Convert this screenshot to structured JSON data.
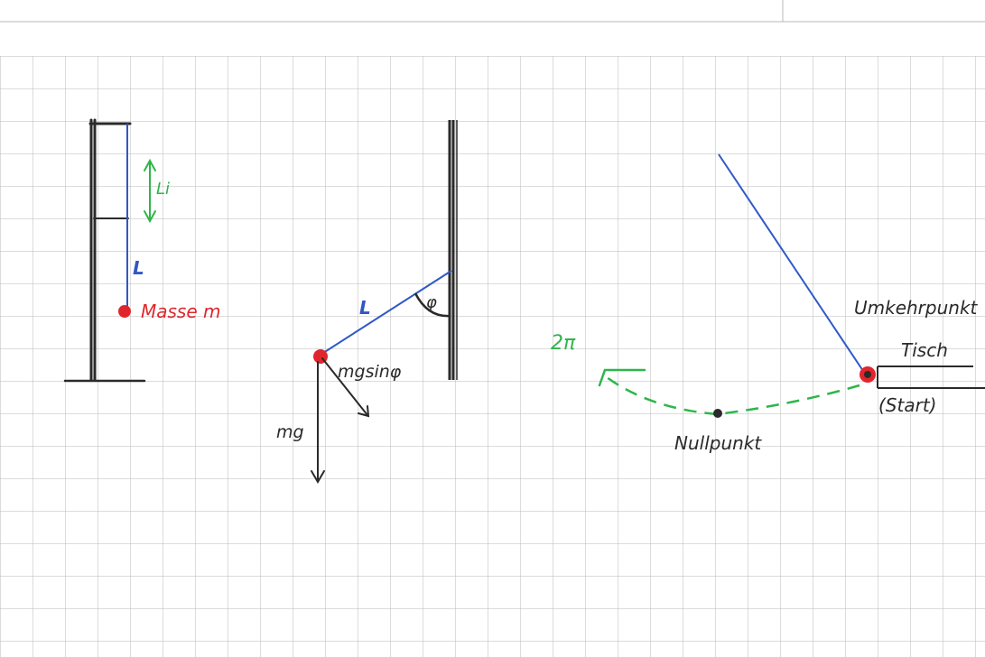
{
  "colors": {
    "paper": "#ffffff",
    "grid": "#b9b9b9",
    "ink_black": "#2a2a2a",
    "ink_blue": "#2f58c7",
    "ink_red": "#e0262c",
    "ink_green": "#2fb54a"
  },
  "labels": {
    "string_length_left": "L",
    "delta_length": "Li",
    "mass": "Masse m",
    "string_length_middle": "L",
    "angle": "φ",
    "tangential_force": "mgsinφ",
    "weight_force": "mg",
    "period_marker": "2π",
    "turning_point": "Umkehrpunkt",
    "table": "Tisch",
    "start": "(Start)",
    "zero_point": "Nullpunkt"
  }
}
